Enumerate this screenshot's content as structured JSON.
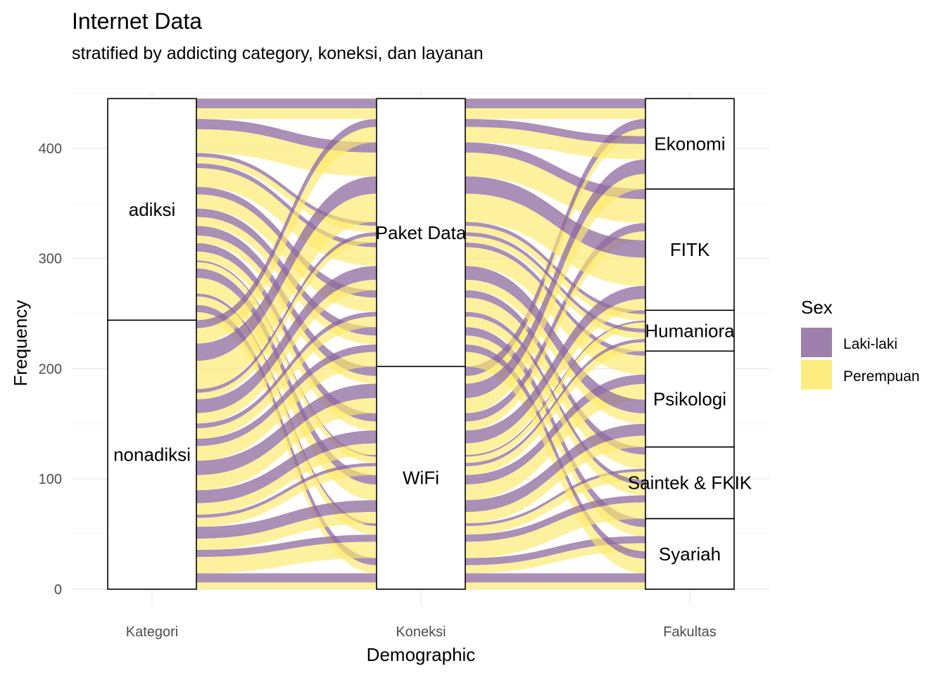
{
  "chart_data": {
    "type": "alluvial",
    "title": "Internet Data",
    "subtitle": "stratified by addicting category, koneksi, dan layanan",
    "xlabel": "Demographic",
    "ylabel": "Frequency",
    "ylim": [
      0,
      445
    ],
    "yticks": [
      0,
      100,
      200,
      300,
      400
    ],
    "axes": [
      "Kategori",
      "Koneksi",
      "Fakultas"
    ],
    "strata": [
      {
        "axis": "Kategori",
        "levels": [
          {
            "name": "adiksi",
            "count": 201
          },
          {
            "name": "nonadiksi",
            "count": 244
          }
        ]
      },
      {
        "axis": "Koneksi",
        "levels": [
          {
            "name": "Paket Data",
            "count": 243
          },
          {
            "name": "WiFi",
            "count": 202
          }
        ]
      },
      {
        "axis": "Fakultas",
        "levels": [
          {
            "name": "Ekonomi",
            "count": 82
          },
          {
            "name": "FITK",
            "count": 110
          },
          {
            "name": "Humaniora",
            "count": 37
          },
          {
            "name": "Psikologi",
            "count": 87
          },
          {
            "name": "Saintek & FKIK",
            "count": 65
          },
          {
            "name": "Syariah",
            "count": 64
          }
        ]
      }
    ],
    "legend": {
      "title": "Sex",
      "position": "right",
      "entries": [
        {
          "name": "Laki-laki",
          "color": "#8d6a9f"
        },
        {
          "name": "Perempuan",
          "color": "#fde96a"
        }
      ]
    },
    "grid": true
  }
}
